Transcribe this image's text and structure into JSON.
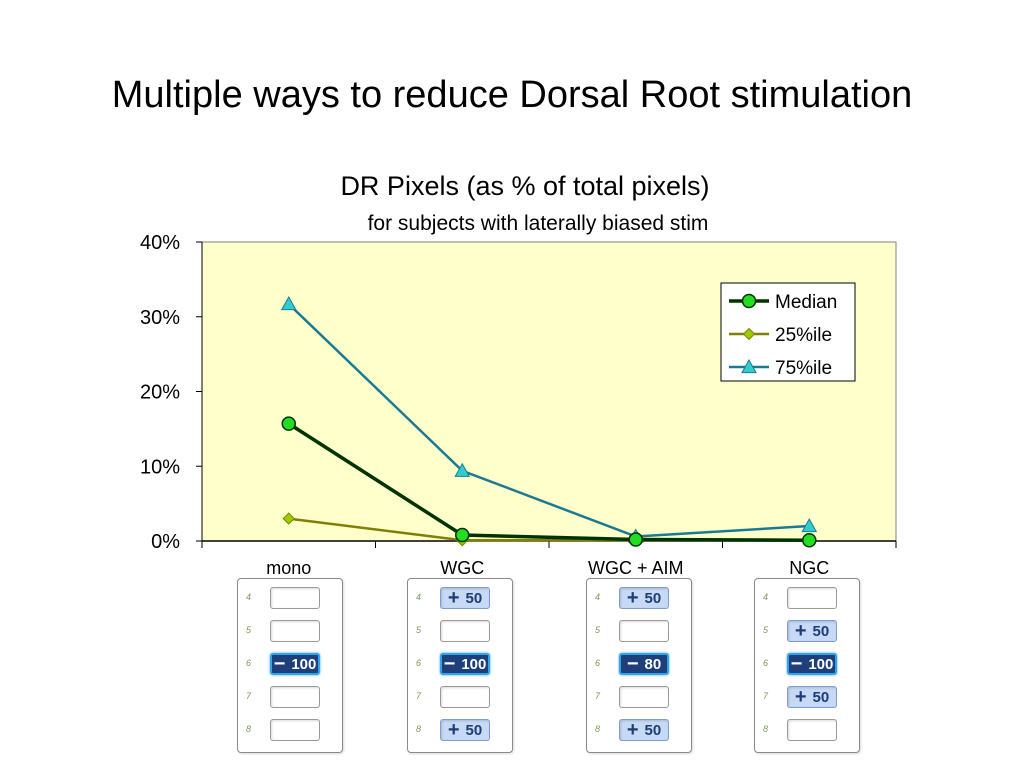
{
  "slide": {
    "title": "Multiple ways to reduce Dorsal Root stimulation"
  },
  "chart_data": {
    "type": "line",
    "title": "DR Pixels (as % of total pixels)",
    "subtitle": "for subjects with laterally biased stim",
    "categories": [
      "mono",
      "WGC",
      "WGC + AIM",
      "NGC"
    ],
    "yticks": [
      "0%",
      "10%",
      "20%",
      "30%",
      "40%"
    ],
    "ylim": [
      0,
      40
    ],
    "unit": "%",
    "legend_position": "top-right",
    "plot_background": "#ffffcc",
    "series": [
      {
        "name": "Median",
        "values": [
          15.7,
          0.8,
          0.2,
          0.1
        ],
        "color": "#003300",
        "marker_fill": "#22dd22",
        "marker": "circle"
      },
      {
        "name": "25%ile",
        "values": [
          3.0,
          0.1,
          0.1,
          0.1
        ],
        "color": "#808000",
        "marker_fill": "#99cc00",
        "marker": "diamond"
      },
      {
        "name": "75%ile",
        "values": [
          31.7,
          9.4,
          0.6,
          2.0
        ],
        "color": "#1a7a94",
        "marker_fill": "#33cccc",
        "marker": "triangle"
      }
    ]
  },
  "contacts": [
    {
      "category": "mono",
      "rows": [
        {
          "num": "4",
          "label": ""
        },
        {
          "num": "5",
          "label": ""
        },
        {
          "num": "6",
          "sign": "−",
          "label": "100",
          "state": "neg"
        },
        {
          "num": "7",
          "label": ""
        },
        {
          "num": "8",
          "label": ""
        }
      ]
    },
    {
      "category": "WGC",
      "rows": [
        {
          "num": "4",
          "sign": "+",
          "label": "50",
          "state": "pos"
        },
        {
          "num": "5",
          "label": ""
        },
        {
          "num": "6",
          "sign": "−",
          "label": "100",
          "state": "neg"
        },
        {
          "num": "7",
          "label": ""
        },
        {
          "num": "8",
          "sign": "+",
          "label": "50",
          "state": "pos"
        }
      ]
    },
    {
      "category": "WGC + AIM",
      "rows": [
        {
          "num": "4",
          "sign": "+",
          "label": "50",
          "state": "pos"
        },
        {
          "num": "5",
          "label": ""
        },
        {
          "num": "6",
          "sign": "−",
          "label": "80",
          "state": "neg"
        },
        {
          "num": "7",
          "label": ""
        },
        {
          "num": "8",
          "sign": "+",
          "label": "50",
          "state": "pos"
        }
      ]
    },
    {
      "category": "NGC",
      "rows": [
        {
          "num": "4",
          "label": ""
        },
        {
          "num": "5",
          "sign": "+",
          "label": "50",
          "state": "pos"
        },
        {
          "num": "6",
          "sign": "−",
          "label": "100",
          "state": "neg"
        },
        {
          "num": "7",
          "sign": "+",
          "label": "50",
          "state": "pos"
        },
        {
          "num": "8",
          "label": ""
        }
      ]
    }
  ]
}
